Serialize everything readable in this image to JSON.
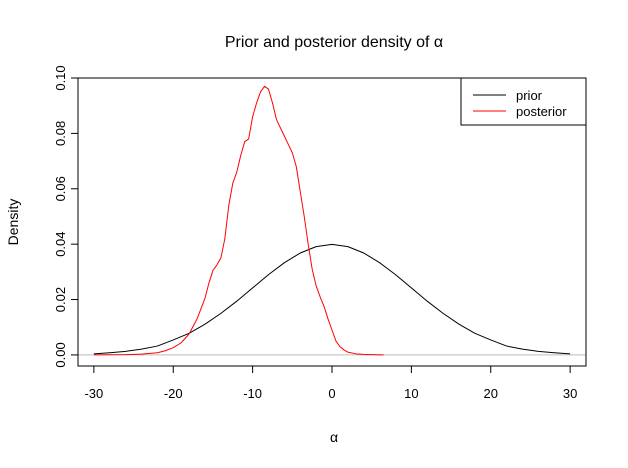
{
  "chart_data": {
    "type": "line",
    "title": "Prior and posterior density of α",
    "xlabel": "α",
    "ylabel": "Density",
    "xlim": [
      -32,
      32
    ],
    "ylim": [
      -0.004,
      0.1
    ],
    "x_ticks": [
      -30,
      -20,
      -10,
      0,
      10,
      20,
      30
    ],
    "y_ticks": [
      0.0,
      0.02,
      0.04,
      0.06,
      0.08,
      0.1
    ],
    "x_tick_labels": [
      "-30",
      "-20",
      "-10",
      "0",
      "10",
      "20",
      "30"
    ],
    "y_tick_labels": [
      "0.00",
      "0.02",
      "0.04",
      "0.06",
      "0.08",
      "0.10"
    ],
    "baseline": 0,
    "legend_position": "top-right",
    "series": [
      {
        "name": "prior",
        "color": "#000000",
        "x": [
          -30,
          -28,
          -26,
          -24,
          -22,
          -20,
          -18,
          -16,
          -14,
          -12,
          -10,
          -8,
          -6,
          -4,
          -2,
          0,
          2,
          4,
          6,
          8,
          10,
          12,
          14,
          16,
          18,
          20,
          22,
          24,
          26,
          28,
          30
        ],
        "y": [
          0.0004,
          0.0008,
          0.0013,
          0.0021,
          0.0032,
          0.0054,
          0.0078,
          0.0111,
          0.015,
          0.0194,
          0.0242,
          0.029,
          0.0333,
          0.0368,
          0.0391,
          0.0399,
          0.0391,
          0.0368,
          0.0333,
          0.029,
          0.0242,
          0.0194,
          0.015,
          0.0111,
          0.0078,
          0.0054,
          0.0032,
          0.0021,
          0.0013,
          0.0008,
          0.0004
        ]
      },
      {
        "name": "posterior",
        "color": "#ff0000",
        "x": [
          -30,
          -26,
          -24,
          -22,
          -21,
          -20,
          -19,
          -18,
          -17,
          -16,
          -15.5,
          -15,
          -14.5,
          -14,
          -13.5,
          -13,
          -12.5,
          -12,
          -11.5,
          -11,
          -10.5,
          -10,
          -9.5,
          -9,
          -8.5,
          -8,
          -7.5,
          -7,
          -6.5,
          -6,
          -5.5,
          -5,
          -4.5,
          -4,
          -3.5,
          -3,
          -2.5,
          -2,
          -1.5,
          -1,
          -0.5,
          0,
          0.5,
          1,
          1.5,
          2,
          3,
          4,
          5,
          6.5
        ],
        "y": [
          0.0,
          0.0001,
          0.0003,
          0.0008,
          0.0015,
          0.0026,
          0.0044,
          0.0076,
          0.013,
          0.0205,
          0.026,
          0.0305,
          0.0325,
          0.035,
          0.042,
          0.054,
          0.062,
          0.066,
          0.072,
          0.077,
          0.078,
          0.086,
          0.091,
          0.095,
          0.097,
          0.096,
          0.091,
          0.085,
          0.082,
          0.079,
          0.076,
          0.073,
          0.068,
          0.059,
          0.05,
          0.04,
          0.031,
          0.025,
          0.021,
          0.0175,
          0.013,
          0.009,
          0.005,
          0.003,
          0.0018,
          0.001,
          0.0004,
          0.0002,
          0.0001,
          0.0
        ]
      }
    ]
  }
}
